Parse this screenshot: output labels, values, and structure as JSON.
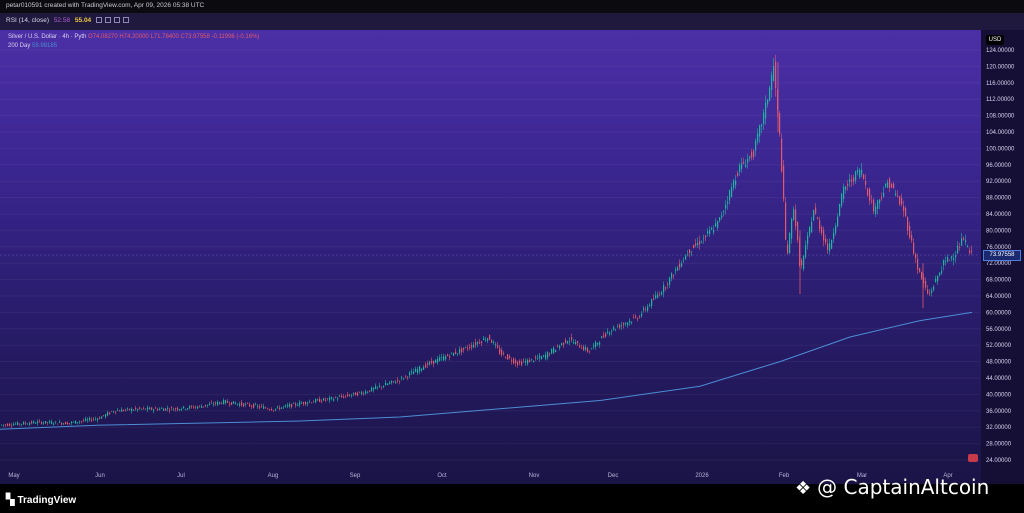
{
  "header": {
    "credit": "petar010591 created with TradingView.com, Apr 09, 2026 05:38 UTC"
  },
  "rsi": {
    "label": "RSI (14, close)",
    "value_a": "52.58",
    "value_b": "55.04"
  },
  "legend": {
    "symbol": "Silver / U.S. Dollar · 4h · Pyth",
    "o": "O74.08270",
    "h": "H74.20000",
    "l": "L71.78400",
    "c": "C73.97558",
    "change": "-0.11996 (-0.16%)",
    "ma_label": "200 Day",
    "ma_value": "59.98185"
  },
  "axis": {
    "currency": "USD",
    "current_price": "73.97558",
    "ticks": [
      "124.00000",
      "120.00000",
      "116.00000",
      "112.00000",
      "108.00000",
      "104.00000",
      "100.00000",
      "96.00000",
      "92.00000",
      "88.00000",
      "84.00000",
      "80.00000",
      "76.00000",
      "72.00000",
      "68.00000",
      "64.00000",
      "60.00000",
      "56.00000",
      "52.00000",
      "48.00000",
      "44.00000",
      "40.00000",
      "36.00000",
      "32.00000",
      "28.00000",
      "24.00000"
    ],
    "months": [
      "May",
      "Jun",
      "Jul",
      "Aug",
      "Sep",
      "Oct",
      "Nov",
      "Dec",
      "2026",
      "Feb",
      "Mar",
      "Apr"
    ]
  },
  "branding": {
    "logo_text": "TradingView",
    "watermark": "@ CaptainAltcoin"
  },
  "colors": {
    "up": "#1fb5a0",
    "down": "#e2596c",
    "ma": "#4d8dd6"
  },
  "chart_data": {
    "type": "line",
    "title": "Silver / U.S. Dollar · 4h · Pyth",
    "ylim": [
      24,
      124
    ],
    "series": [
      {
        "name": "Silver / U.S. Dollar",
        "x": [
          "May",
          "Jun",
          "Jul",
          "Aug",
          "Sep",
          "Oct",
          "Nov",
          "Dec",
          "2026",
          "Feb",
          "Mar",
          "Apr"
        ],
        "values": [
          32.5,
          36,
          37,
          37,
          40,
          48,
          48,
          57,
          78,
          76,
          88,
          74
        ]
      },
      {
        "name": "200 Day",
        "x": [
          "May",
          "Jun",
          "Jul",
          "Aug",
          "Sep",
          "Oct",
          "Nov",
          "Dec",
          "2026",
          "Feb",
          "Mar",
          "Apr"
        ],
        "values": [
          31.5,
          32.5,
          33,
          33.5,
          34.5,
          36.5,
          37.5,
          39.5,
          44,
          50,
          55.5,
          60
        ]
      }
    ],
    "price_path": [
      [
        0,
        32.5
      ],
      [
        40,
        33.2
      ],
      [
        70,
        33
      ],
      [
        100,
        34.2
      ],
      [
        115,
        36
      ],
      [
        140,
        36.4
      ],
      [
        175,
        36.5
      ],
      [
        200,
        37
      ],
      [
        225,
        38.2
      ],
      [
        255,
        37.2
      ],
      [
        275,
        36.4
      ],
      [
        305,
        38
      ],
      [
        335,
        39
      ],
      [
        365,
        40.5
      ],
      [
        400,
        43.5
      ],
      [
        430,
        47.5
      ],
      [
        465,
        51
      ],
      [
        490,
        54
      ],
      [
        502,
        50
      ],
      [
        520,
        47.5
      ],
      [
        545,
        49.2
      ],
      [
        570,
        53.5
      ],
      [
        590,
        50.5
      ],
      [
        610,
        55.5
      ],
      [
        640,
        59
      ],
      [
        665,
        66
      ],
      [
        690,
        75
      ],
      [
        705,
        78
      ],
      [
        720,
        82
      ],
      [
        740,
        95
      ],
      [
        755,
        99
      ],
      [
        767,
        110
      ],
      [
        775,
        120
      ],
      [
        782,
        100
      ],
      [
        788,
        73
      ],
      [
        795,
        86
      ],
      [
        802,
        70
      ],
      [
        815,
        85
      ],
      [
        830,
        75
      ],
      [
        845,
        90
      ],
      [
        862,
        95
      ],
      [
        875,
        85
      ],
      [
        890,
        92
      ],
      [
        905,
        85
      ],
      [
        920,
        70
      ],
      [
        930,
        64
      ],
      [
        945,
        72
      ],
      [
        955,
        74
      ],
      [
        965,
        78
      ],
      [
        972,
        74
      ]
    ],
    "ma_path": [
      [
        0,
        31.5
      ],
      [
        100,
        32.5
      ],
      [
        200,
        33
      ],
      [
        300,
        33.5
      ],
      [
        400,
        34.5
      ],
      [
        500,
        36.5
      ],
      [
        600,
        38.5
      ],
      [
        700,
        42
      ],
      [
        780,
        48
      ],
      [
        850,
        54
      ],
      [
        920,
        58
      ],
      [
        972,
        60
      ]
    ]
  }
}
